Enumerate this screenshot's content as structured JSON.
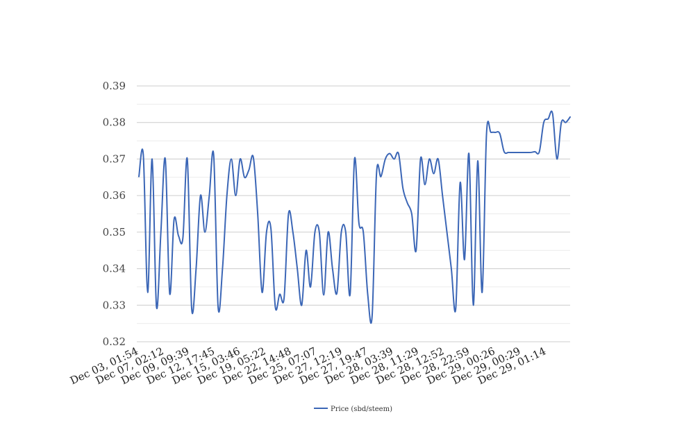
{
  "chart_data": {
    "type": "line",
    "title": "",
    "xlabel": "",
    "ylabel": "",
    "ylim": [
      0.32,
      0.39
    ],
    "y_ticks": [
      "0.32",
      "0.33",
      "0.34",
      "0.35",
      "0.36",
      "0.37",
      "0.38",
      "0.39"
    ],
    "x_tick_labels": [
      "Dec 03, 01:54",
      "Dec 07, 02:12",
      "Dec 09, 09:39",
      "Dec 12, 17:45",
      "Dec 15, 03:46",
      "Dec 19, 05:22",
      "Dec 22, 14:48",
      "Dec 25, 07:07",
      "Dec 27, 12:19",
      "Dec 27, 19:47",
      "Dec 28, 03:39",
      "Dec 28, 11:29",
      "Dec 28, 12:52",
      "Dec 28, 22:59",
      "Dec 29, 00:26",
      "Dec 29, 00:29",
      "Dec 29, 01:14"
    ],
    "grid": true,
    "legend_position": "bottom",
    "colors": {
      "line": "#3b66b6",
      "grid_major": "#cccccc",
      "grid_minor": "#ebebeb"
    },
    "series": [
      {
        "name": "Price (sbd/steem)",
        "values": [
          0.3652,
          0.3712,
          0.3335,
          0.37,
          0.3295,
          0.35,
          0.37,
          0.3332,
          0.3535,
          0.349,
          0.3484,
          0.37,
          0.329,
          0.34,
          0.36,
          0.35,
          0.36,
          0.371,
          0.3295,
          0.34,
          0.36,
          0.37,
          0.36,
          0.37,
          0.365,
          0.367,
          0.3705,
          0.355,
          0.3335,
          0.35,
          0.351,
          0.3295,
          0.333,
          0.332,
          0.355,
          0.35,
          0.34,
          0.33,
          0.345,
          0.335,
          0.35,
          0.35,
          0.3328,
          0.35,
          0.34,
          0.3333,
          0.35,
          0.35,
          0.333,
          0.37,
          0.3525,
          0.35,
          0.333,
          0.327,
          0.366,
          0.3652,
          0.37,
          0.3715,
          0.37,
          0.3715,
          0.362,
          0.358,
          0.355,
          0.345,
          0.37,
          0.363,
          0.37,
          0.366,
          0.37,
          0.36,
          0.35,
          0.34,
          0.329,
          0.3635,
          0.3425,
          0.3715,
          0.33,
          0.3695,
          0.3335,
          0.377,
          0.3773,
          0.3773,
          0.377,
          0.372,
          0.3718,
          0.3718,
          0.3718,
          0.3718,
          0.3718,
          0.3718,
          0.372,
          0.372,
          0.38,
          0.381,
          0.3825,
          0.37,
          0.38,
          0.38,
          0.3815
        ]
      }
    ]
  }
}
